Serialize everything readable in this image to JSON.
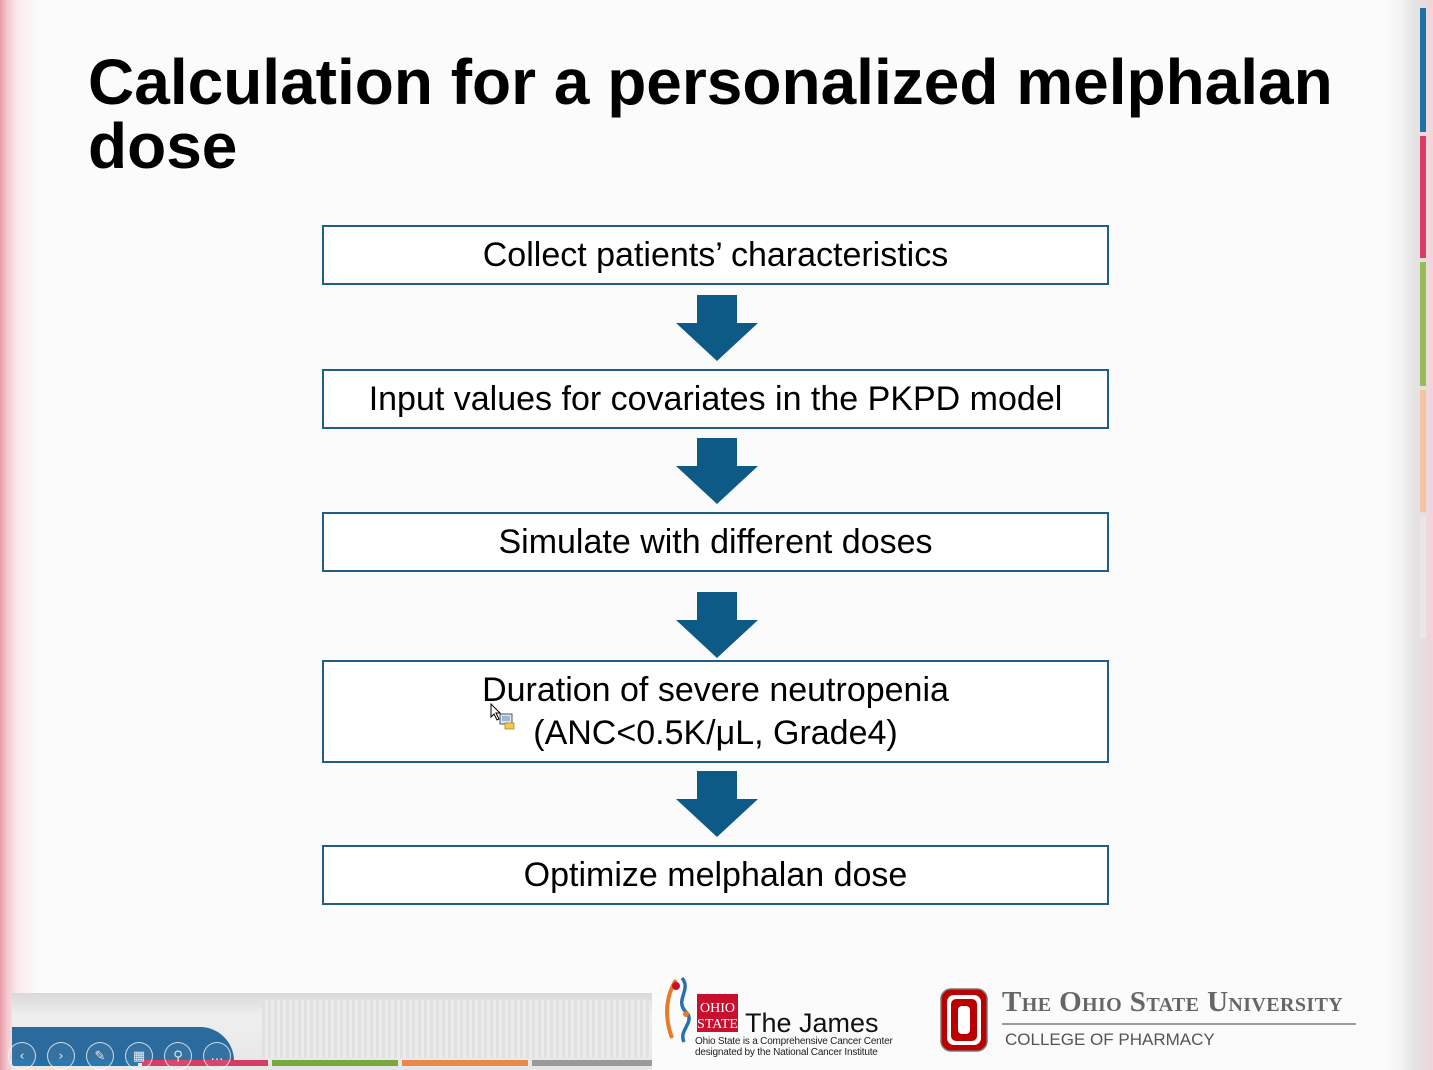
{
  "slide": {
    "title": "Calculation for a personalized melphalan dose",
    "flow_steps": [
      {
        "lines": [
          "Collect patients’ characteristics"
        ]
      },
      {
        "lines": [
          "Input values for covariates in the PKPD model"
        ]
      },
      {
        "lines": [
          "Simulate with different doses"
        ]
      },
      {
        "lines": [
          "Duration of severe neutropenia",
          "(ANC<0.5K/μL, Grade4)"
        ]
      },
      {
        "lines": [
          "Optimize melphalan dose"
        ]
      }
    ],
    "colors": {
      "box_border": "#1f5f86",
      "arrow": "#0e5a86",
      "osu_scarlet": "#bb0000",
      "accent_blue": "#2a6a9c"
    }
  },
  "logos": {
    "james": {
      "seal_top": "OHIO",
      "seal_bottom": "STATE",
      "name": "The James",
      "tagline_1": "Ohio State is a Comprehensive Cancer Center",
      "tagline_2": "designated by the National Cancer Institute"
    },
    "osu": {
      "name": "The Ohio State University",
      "college": "COLLEGE OF PHARMACY"
    }
  },
  "player_controls": [
    {
      "name": "previous-slide-icon",
      "glyph": "‹"
    },
    {
      "name": "next-slide-icon",
      "glyph": "›"
    },
    {
      "name": "pen-icon",
      "glyph": "✎"
    },
    {
      "name": "slides-grid-icon",
      "glyph": "▦"
    },
    {
      "name": "zoom-icon",
      "glyph": "⚲"
    },
    {
      "name": "more-options-icon",
      "glyph": "…"
    }
  ]
}
